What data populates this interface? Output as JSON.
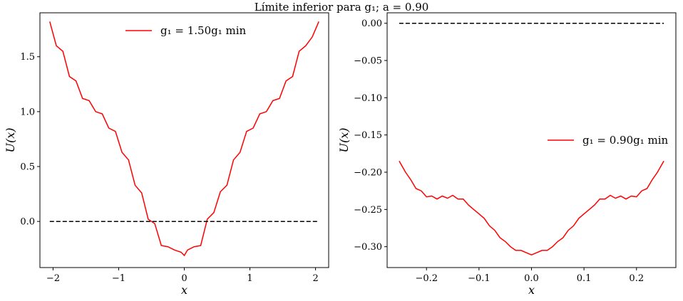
{
  "figure": {
    "title": "Límite inferior para g₁; a = 0.90"
  },
  "chart_data": [
    {
      "type": "line",
      "xlabel": "x",
      "ylabel": "U(x)",
      "xlim": [
        -2.2,
        2.2
      ],
      "ylim": [
        -0.42,
        1.9
      ],
      "xticks": [
        -2,
        -1,
        0,
        1,
        2
      ],
      "xtick_labels": [
        "−2",
        "−1",
        "0",
        "1",
        "2"
      ],
      "yticks": [
        0.0,
        0.5,
        1.0,
        1.5
      ],
      "ytick_labels": [
        "0.0",
        "0.5",
        "1.0",
        "1.5"
      ],
      "legend_loc": "upper center",
      "grid": false,
      "series": [
        {
          "name": "g₁ = 1.50g₁ min",
          "color": "#ff0000",
          "style": "solid",
          "x": [
            -2.05,
            -1.95,
            -1.85,
            -1.75,
            -1.65,
            -1.55,
            -1.45,
            -1.35,
            -1.25,
            -1.15,
            -1.05,
            -0.95,
            -0.85,
            -0.75,
            -0.65,
            -0.55,
            -0.45,
            -0.35,
            -0.25,
            -0.15,
            -0.05,
            0.0,
            0.05,
            0.15,
            0.25,
            0.35,
            0.45,
            0.55,
            0.65,
            0.75,
            0.85,
            0.95,
            1.05,
            1.15,
            1.25,
            1.35,
            1.45,
            1.55,
            1.65,
            1.75,
            1.85,
            1.95,
            2.05
          ],
          "y": [
            1.82,
            1.6,
            1.55,
            1.32,
            1.28,
            1.12,
            1.1,
            1.0,
            0.98,
            0.85,
            0.82,
            0.63,
            0.56,
            0.33,
            0.26,
            0.02,
            -0.02,
            -0.22,
            -0.23,
            -0.26,
            -0.28,
            -0.31,
            -0.26,
            -0.23,
            -0.22,
            0.02,
            0.08,
            0.27,
            0.33,
            0.56,
            0.63,
            0.82,
            0.85,
            0.98,
            1.0,
            1.1,
            1.12,
            1.28,
            1.32,
            1.55,
            1.6,
            1.68,
            1.82
          ]
        },
        {
          "name": "",
          "color": "#000000",
          "style": "dashed",
          "x": [
            -2.05,
            2.05
          ],
          "y": [
            0.0,
            0.0
          ]
        }
      ]
    },
    {
      "type": "line",
      "xlabel": "x",
      "ylabel": "U(x)",
      "xlim": [
        -0.275,
        0.275
      ],
      "ylim": [
        -0.328,
        0.014
      ],
      "xticks": [
        -0.2,
        -0.1,
        0.0,
        0.1,
        0.2
      ],
      "xtick_labels": [
        "−0.2",
        "−0.1",
        "0.0",
        "0.1",
        "0.2"
      ],
      "yticks": [
        0.0,
        -0.05,
        -0.1,
        -0.15,
        -0.2,
        -0.25,
        -0.3
      ],
      "ytick_labels": [
        "0.00",
        "−0.05",
        "−0.10",
        "−0.15",
        "−0.20",
        "−0.25",
        "−0.30"
      ],
      "legend_loc": "center right",
      "grid": false,
      "series": [
        {
          "name": "g₁ = 0.90g₁ min",
          "color": "#ff0000",
          "style": "solid",
          "x": [
            -0.252,
            -0.24,
            -0.23,
            -0.22,
            -0.21,
            -0.2,
            -0.19,
            -0.18,
            -0.17,
            -0.16,
            -0.15,
            -0.14,
            -0.13,
            -0.12,
            -0.11,
            -0.1,
            -0.09,
            -0.08,
            -0.07,
            -0.06,
            -0.05,
            -0.04,
            -0.03,
            -0.02,
            -0.01,
            0.0,
            0.01,
            0.02,
            0.03,
            0.04,
            0.05,
            0.06,
            0.07,
            0.08,
            0.09,
            0.1,
            0.11,
            0.12,
            0.13,
            0.14,
            0.15,
            0.16,
            0.17,
            0.18,
            0.19,
            0.2,
            0.21,
            0.22,
            0.23,
            0.24,
            0.252
          ],
          "y": [
            -0.185,
            -0.2,
            -0.21,
            -0.222,
            -0.225,
            -0.233,
            -0.232,
            -0.236,
            -0.232,
            -0.235,
            -0.231,
            -0.236,
            -0.236,
            -0.244,
            -0.25,
            -0.256,
            -0.262,
            -0.272,
            -0.278,
            -0.288,
            -0.293,
            -0.3,
            -0.305,
            -0.305,
            -0.308,
            -0.311,
            -0.308,
            -0.305,
            -0.305,
            -0.3,
            -0.293,
            -0.288,
            -0.278,
            -0.272,
            -0.262,
            -0.256,
            -0.25,
            -0.244,
            -0.236,
            -0.236,
            -0.231,
            -0.235,
            -0.232,
            -0.236,
            -0.232,
            -0.233,
            -0.225,
            -0.222,
            -0.21,
            -0.2,
            -0.185
          ]
        },
        {
          "name": "",
          "color": "#000000",
          "style": "dashed",
          "x": [
            -0.252,
            0.252
          ],
          "y": [
            0.0,
            0.0
          ]
        }
      ]
    }
  ]
}
